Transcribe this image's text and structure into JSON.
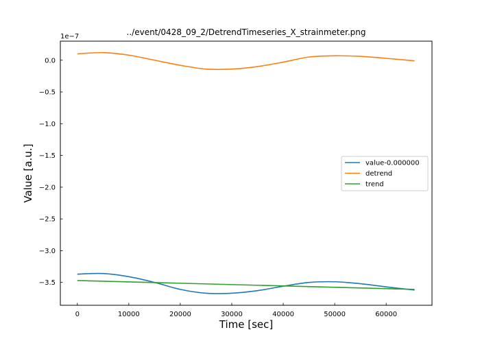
{
  "chart_data": {
    "type": "line",
    "title": "../event/0428_09_2/DetrendTimeseries_X_strainmeter.png",
    "xlabel": "Time [sec]",
    "ylabel": "Value [a.u.]",
    "y_offset_label": "1e−7",
    "xlim": [
      -3300,
      68900
    ],
    "ylim": [
      -3.86,
      0.3
    ],
    "xticks": [
      0,
      10000,
      20000,
      30000,
      40000,
      50000,
      60000
    ],
    "xtick_labels": [
      "0",
      "10000",
      "20000",
      "30000",
      "40000",
      "50000",
      "60000"
    ],
    "yticks": [
      0.0,
      -0.5,
      -1.0,
      -1.5,
      -2.0,
      -2.5,
      -3.0,
      -3.5
    ],
    "ytick_labels": [
      "0.0",
      "−0.5",
      "−1.0",
      "−1.5",
      "−2.0",
      "−2.5",
      "−3.0",
      "−3.5"
    ],
    "grid": false,
    "legend_position": "center-right",
    "series": [
      {
        "name": "value-0.000000",
        "color": "#1f77b4",
        "x": [
          0,
          5000,
          10000,
          15000,
          20000,
          25000,
          30000,
          35000,
          40000,
          45000,
          50000,
          55000,
          60000,
          65500
        ],
        "y": [
          -3.37,
          -3.36,
          -3.41,
          -3.5,
          -3.61,
          -3.67,
          -3.67,
          -3.63,
          -3.56,
          -3.5,
          -3.49,
          -3.52,
          -3.57,
          -3.62
        ]
      },
      {
        "name": "detrend",
        "color": "#ff7f0e",
        "x": [
          0,
          5000,
          10000,
          15000,
          20000,
          25000,
          30000,
          35000,
          40000,
          45000,
          50000,
          55000,
          60000,
          65500
        ],
        "y": [
          0.1,
          0.12,
          0.08,
          0.0,
          -0.08,
          -0.14,
          -0.14,
          -0.1,
          -0.03,
          0.05,
          0.07,
          0.06,
          0.03,
          -0.01
        ]
      },
      {
        "name": "trend",
        "color": "#2ca02c",
        "x": [
          0,
          65500
        ],
        "y": [
          -3.47,
          -3.61
        ]
      }
    ]
  }
}
